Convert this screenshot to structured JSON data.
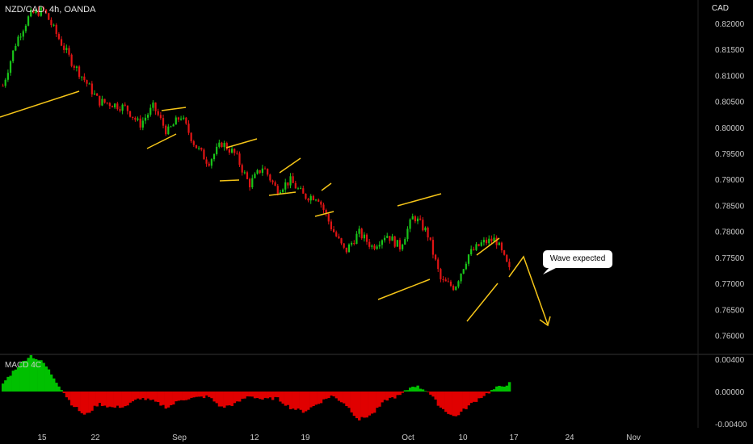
{
  "header": {
    "symbol": "NZD/CAD, 4h, OANDA",
    "currency": "CAD"
  },
  "indicator": {
    "label": "MACD 4C"
  },
  "annotation": {
    "text": "Wave expected"
  },
  "chart_data": {
    "type": "candlestick",
    "price_axis": {
      "ticks": [
        "0.82000",
        "0.81500",
        "0.81000",
        "0.80500",
        "0.80000",
        "0.79500",
        "0.79000",
        "0.78500",
        "0.78000",
        "0.77500",
        "0.77000",
        "0.76500",
        "0.76000"
      ],
      "ylim": [
        0.7565,
        0.8245
      ]
    },
    "macd_axis": {
      "ticks": [
        "0.00400",
        "0.00000",
        "-0.00400"
      ],
      "ylim": [
        -0.0045,
        0.0045
      ]
    },
    "x_ticks": [
      "15",
      "22",
      "Sep",
      "12",
      "19",
      "Oct",
      "10",
      "17",
      "24",
      "Nov"
    ],
    "price_path": [
      [
        0.8085,
        0.8075
      ],
      [
        0.815,
        0.8185
      ],
      [
        0.822,
        0.8215
      ],
      [
        0.8235,
        0.8215
      ],
      [
        0.819,
        0.816
      ],
      [
        0.814,
        0.8115
      ],
      [
        0.809,
        0.809
      ],
      [
        0.806,
        0.804
      ],
      [
        0.803,
        0.806
      ],
      [
        0.804,
        0.8035
      ],
      [
        0.8025,
        0.7985
      ],
      [
        0.8035,
        0.8045
      ],
      [
        0.7995,
        0.7985
      ],
      [
        0.802,
        0.8025
      ],
      [
        0.7975,
        0.796
      ],
      [
        0.7925,
        0.794
      ],
      [
        0.7965,
        0.7975
      ],
      [
        0.796,
        0.7935
      ],
      [
        0.7885,
        0.7895
      ],
      [
        0.792,
        0.793
      ],
      [
        0.7885,
        0.7875
      ],
      [
        0.79,
        0.7895
      ],
      [
        0.7865,
        0.787
      ],
      [
        0.788,
        0.7855
      ],
      [
        0.7825,
        0.779
      ],
      [
        0.7775,
        0.7745
      ],
      [
        0.779,
        0.7805
      ],
      [
        0.7785,
        0.7755
      ],
      [
        0.78,
        0.779
      ],
      [
        0.778,
        0.776
      ],
      [
        0.78,
        0.786
      ],
      [
        0.7825,
        0.777
      ],
      [
        0.773,
        0.768
      ],
      [
        0.767,
        0.7715
      ],
      [
        0.776,
        0.775
      ],
      [
        0.7775,
        0.778
      ],
      [
        0.78,
        0.777
      ],
      [
        0.772,
        0.773
      ]
    ],
    "macd": {
      "legend": [
        "MACD 4C"
      ],
      "positive_color": "#00c000",
      "negative_color": "#e00000",
      "profile": [
        0.001,
        0.003,
        0.0045,
        0.0035,
        0.001,
        -0.0015,
        -0.003,
        -0.0015,
        -0.002,
        -0.0018,
        -0.0008,
        -0.0012,
        -0.002,
        -0.001,
        -0.0008,
        -0.0006,
        -0.002,
        -0.0015,
        -0.0005,
        -0.001,
        -0.0008,
        -0.002,
        -0.0025,
        -0.0015,
        -0.0005,
        -0.0015,
        -0.0035,
        -0.0028,
        -0.001,
        -0.0005,
        0.0008,
        0.0001,
        -0.002,
        -0.0032,
        -0.0018,
        -0.0006,
        0.0004,
        0.001
      ]
    },
    "annotations": [
      {
        "kind": "trendline"
      },
      {
        "kind": "channel"
      },
      {
        "kind": "forecast-arrow",
        "label": "Wave expected"
      }
    ],
    "colors": {
      "up": "#19c419",
      "down": "#e01414",
      "background": "#000000",
      "drawings": "#f5c518"
    }
  }
}
